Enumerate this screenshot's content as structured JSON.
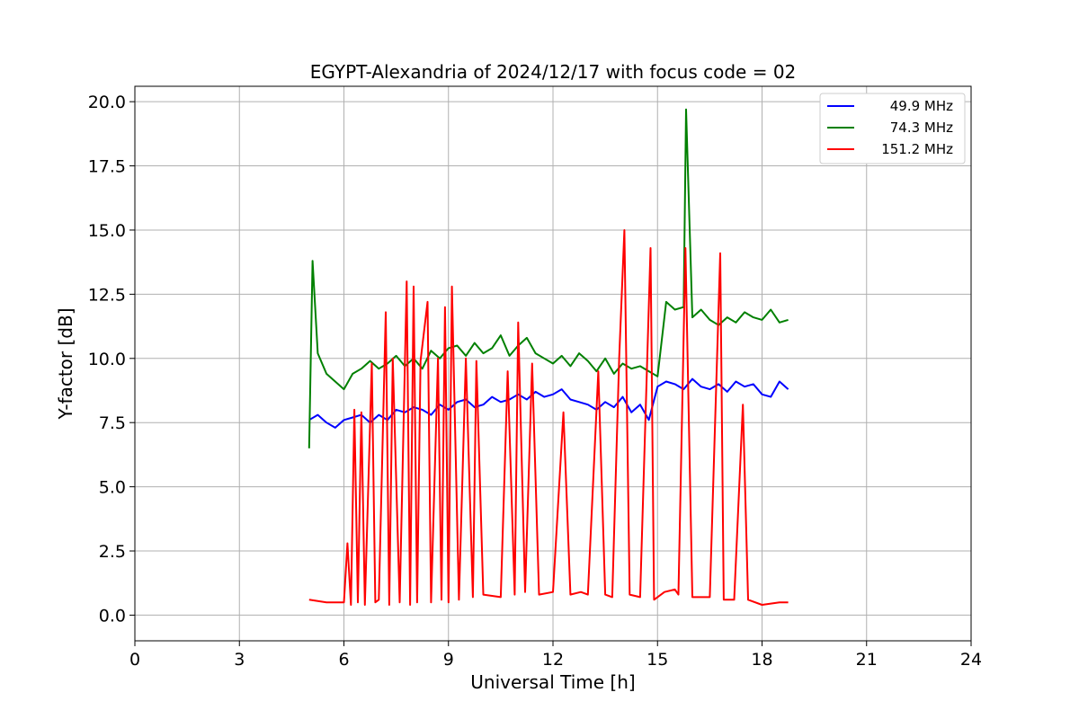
{
  "chart_data": {
    "type": "line",
    "title": "EGYPT-Alexandria of 2024/12/17 with focus code = 02",
    "xlabel": "Universal Time [h]",
    "ylabel": "Y-factor [dB]",
    "xlim": [
      0,
      24
    ],
    "ylim": [
      -1.0,
      20.6
    ],
    "xticks": [
      "0",
      "3",
      "6",
      "9",
      "12",
      "15",
      "18",
      "21",
      "24"
    ],
    "yticks": [
      "0.0",
      "2.5",
      "5.0",
      "7.5",
      "10.0",
      "12.5",
      "15.0",
      "17.5",
      "20.0"
    ],
    "grid": true,
    "legend_position": "top-right",
    "series": [
      {
        "name": "49.9 MHz",
        "color": "#0000ff",
        "x": [
          5.0,
          5.25,
          5.5,
          5.75,
          6.0,
          6.25,
          6.5,
          6.75,
          7.0,
          7.25,
          7.5,
          7.75,
          8.0,
          8.25,
          8.5,
          8.75,
          9.0,
          9.25,
          9.5,
          9.75,
          10.0,
          10.25,
          10.5,
          10.75,
          11.0,
          11.25,
          11.5,
          11.75,
          12.0,
          12.25,
          12.5,
          12.75,
          13.0,
          13.25,
          13.5,
          13.75,
          14.0,
          14.25,
          14.5,
          14.75,
          15.0,
          15.25,
          15.5,
          15.75,
          16.0,
          16.25,
          16.5,
          16.75,
          17.0,
          17.25,
          17.5,
          17.75,
          18.0,
          18.25,
          18.5,
          18.75
        ],
        "y": [
          7.6,
          7.8,
          7.5,
          7.3,
          7.6,
          7.7,
          7.8,
          7.5,
          7.8,
          7.6,
          8.0,
          7.9,
          8.1,
          8.0,
          7.8,
          8.2,
          8.0,
          8.3,
          8.4,
          8.1,
          8.2,
          8.5,
          8.3,
          8.4,
          8.6,
          8.4,
          8.7,
          8.5,
          8.6,
          8.8,
          8.4,
          8.3,
          8.2,
          8.0,
          8.3,
          8.1,
          8.5,
          7.9,
          8.2,
          7.6,
          8.9,
          9.1,
          9.0,
          8.8,
          9.2,
          8.9,
          8.8,
          9.0,
          8.7,
          9.1,
          8.9,
          9.0,
          8.6,
          8.5,
          9.1,
          8.8
        ]
      },
      {
        "name": "74.3 MHz",
        "color": "#008000",
        "x": [
          5.0,
          5.1,
          5.25,
          5.5,
          5.75,
          6.0,
          6.25,
          6.5,
          6.75,
          7.0,
          7.25,
          7.5,
          7.75,
          8.0,
          8.25,
          8.5,
          8.75,
          9.0,
          9.25,
          9.5,
          9.75,
          10.0,
          10.25,
          10.5,
          10.75,
          11.0,
          11.25,
          11.5,
          11.75,
          12.0,
          12.25,
          12.5,
          12.75,
          13.0,
          13.25,
          13.5,
          13.75,
          14.0,
          14.25,
          14.5,
          14.75,
          15.0,
          15.25,
          15.5,
          15.75,
          15.82,
          16.0,
          16.25,
          16.5,
          16.75,
          17.0,
          17.25,
          17.5,
          17.75,
          18.0,
          18.25,
          18.5,
          18.75
        ],
        "y": [
          6.5,
          13.8,
          10.2,
          9.4,
          9.1,
          8.8,
          9.4,
          9.6,
          9.9,
          9.6,
          9.8,
          10.1,
          9.7,
          10.0,
          9.6,
          10.3,
          10.0,
          10.4,
          10.5,
          10.1,
          10.6,
          10.2,
          10.4,
          10.9,
          10.1,
          10.5,
          10.8,
          10.2,
          10.0,
          9.8,
          10.1,
          9.7,
          10.2,
          9.9,
          9.5,
          10.0,
          9.4,
          9.8,
          9.6,
          9.7,
          9.5,
          9.3,
          12.2,
          11.9,
          12.0,
          19.7,
          11.6,
          11.9,
          11.5,
          11.3,
          11.6,
          11.4,
          11.8,
          11.6,
          11.5,
          11.9,
          11.4,
          11.5
        ]
      },
      {
        "name": "151.2 MHz",
        "color": "#ff0000",
        "x": [
          5.0,
          5.5,
          6.0,
          6.1,
          6.2,
          6.3,
          6.4,
          6.5,
          6.6,
          6.8,
          6.9,
          7.0,
          7.2,
          7.3,
          7.4,
          7.6,
          7.8,
          7.9,
          8.0,
          8.1,
          8.2,
          8.4,
          8.5,
          8.7,
          8.8,
          8.9,
          9.0,
          9.1,
          9.3,
          9.5,
          9.7,
          9.8,
          10.0,
          10.5,
          10.7,
          10.9,
          11.0,
          11.2,
          11.4,
          11.6,
          12.0,
          12.3,
          12.5,
          12.8,
          13.0,
          13.3,
          13.5,
          13.7,
          13.9,
          14.05,
          14.2,
          14.5,
          14.8,
          14.9,
          15.2,
          15.5,
          15.6,
          15.8,
          16.0,
          16.5,
          16.8,
          16.9,
          17.2,
          17.45,
          17.6,
          18.0,
          18.5,
          18.75
        ],
        "y": [
          0.6,
          0.5,
          0.5,
          2.8,
          0.4,
          8.0,
          0.5,
          7.9,
          0.4,
          9.8,
          0.5,
          0.6,
          11.8,
          0.4,
          10.0,
          0.5,
          13.0,
          0.4,
          12.8,
          0.5,
          9.9,
          12.2,
          0.5,
          10.0,
          0.6,
          12.0,
          0.5,
          12.8,
          0.6,
          10.0,
          0.7,
          9.9,
          0.8,
          0.7,
          9.5,
          0.8,
          11.4,
          0.9,
          9.8,
          0.8,
          0.9,
          7.9,
          0.8,
          0.9,
          0.8,
          9.5,
          0.8,
          0.7,
          10.0,
          15.0,
          0.8,
          0.7,
          14.3,
          0.6,
          0.9,
          1.0,
          0.8,
          14.3,
          0.7,
          0.7,
          14.1,
          0.6,
          0.6,
          8.2,
          0.6,
          0.4,
          0.5,
          0.5
        ]
      }
    ]
  }
}
